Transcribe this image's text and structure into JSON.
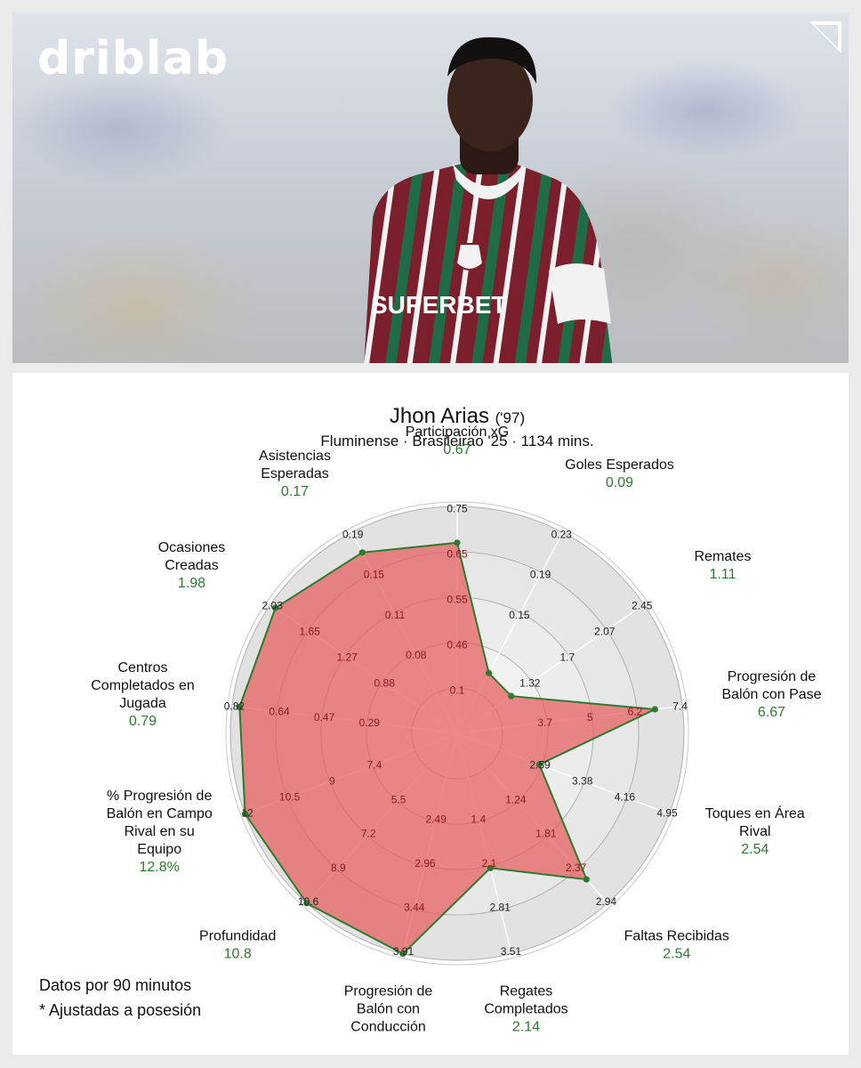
{
  "brand": {
    "logo_text": "driblab"
  },
  "colors": {
    "area_fill": "#e85c5c",
    "area_stroke": "#2e7a2e",
    "value_green": "#2d7a2d",
    "tick_text": "#222222",
    "tick_text_inside": "#8a1a1a"
  },
  "chart_data": {
    "type": "radar",
    "title": "Jhon Arias",
    "title_suffix": "('97)",
    "subtitle": "Fluminense · Brasileirao '25 · 1134 mins.",
    "axes": [
      {
        "label": [
          "Participación xG"
        ],
        "value": 0.67,
        "display": "0.67",
        "ticks": [
          "0.1",
          "0.46",
          "0.55",
          "0.65",
          "0.75"
        ]
      },
      {
        "label": [
          "Goles Esperados"
        ],
        "value": 0.09,
        "display": "0.09",
        "ticks": [
          "",
          "0.15",
          "0.19",
          "0.23"
        ]
      },
      {
        "label": [
          "Remates"
        ],
        "value": 1.11,
        "display": "1.11",
        "ticks": [
          "1.32",
          "1.7",
          "2.07",
          "2.45"
        ]
      },
      {
        "label": [
          "Progresión de",
          "Balón con Pase"
        ],
        "value": 6.67,
        "display": "6.67",
        "ticks": [
          "3.7",
          "5",
          "6.2",
          "7.4"
        ]
      },
      {
        "label": [
          "Toques en Área",
          "Rival"
        ],
        "value": 2.54,
        "display": "2.54",
        "ticks": [
          "2.59",
          "3.38",
          "4.16",
          "4.95"
        ]
      },
      {
        "label": [
          "Faltas Recibidas"
        ],
        "value": 2.54,
        "display": "2.54",
        "ticks": [
          "1.24",
          "1.81",
          "2.37",
          "2.94"
        ]
      },
      {
        "label": [
          "Regates",
          "Completados"
        ],
        "value": 2.14,
        "display": "2.14",
        "ticks": [
          "1.4",
          "2.1",
          "2.81",
          "3.51"
        ]
      },
      {
        "label": [
          "Progresión de",
          "Balón con",
          "Conducción"
        ],
        "value": 3.91,
        "display": "",
        "ticks": [
          "2.49",
          "2.96",
          "3.44",
          "3.91"
        ]
      },
      {
        "label": [
          "Profundidad"
        ],
        "value": 10.8,
        "display": "10.8",
        "ticks": [
          "5.5",
          "7.2",
          "8.9",
          "10.6"
        ]
      },
      {
        "label": [
          "% Progresión de",
          "Balón en Campo",
          "Rival en su",
          "Equipo"
        ],
        "value": 12.8,
        "display": "12.8%",
        "ticks": [
          "7.4",
          "9",
          "10.5",
          "12"
        ]
      },
      {
        "label": [
          "Centros",
          "Completados en",
          "Jugada"
        ],
        "value": 0.79,
        "display": "0.79",
        "ticks": [
          "0.29",
          "0.47",
          "0.64",
          "0.82"
        ]
      },
      {
        "label": [
          "Ocasiones",
          "Creadas"
        ],
        "value": 1.98,
        "display": "1.98",
        "ticks": [
          "0.88",
          "1.27",
          "1.65",
          "2.03"
        ]
      },
      {
        "label": [
          "Asistencias",
          "Esperadas"
        ],
        "value": 0.17,
        "display": "0.17",
        "ticks": [
          "0.08",
          "0.11",
          "0.15",
          "0.19"
        ]
      }
    ]
  },
  "footnotes": {
    "line1": "Datos por 90 minutos",
    "line2": "* Ajustadas a posesión"
  }
}
